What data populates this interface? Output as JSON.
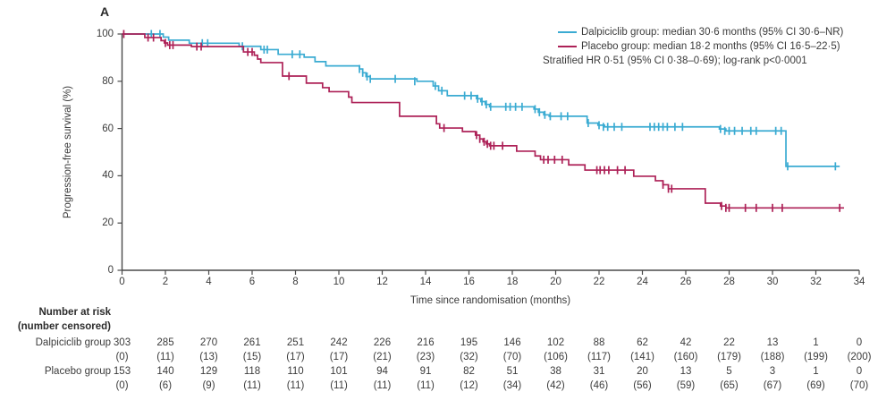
{
  "panel_label": "A",
  "legend": {
    "entries": [
      {
        "name": "Dalpiciclib group",
        "label": "Dalpiciclib group: median 30·6 months (95% CI 30·6–NR)",
        "color": "#3aabd2"
      },
      {
        "name": "Placebo group",
        "label": "Placebo group: median 18·2 months (95% CI 16·5–22·5)",
        "color": "#ad2157"
      }
    ],
    "note": "Stratified HR 0·51 (95% CI 0·38–0·69); log-rank p<0·0001"
  },
  "chart_data": {
    "type": "line",
    "subtype": "kaplan-meier-step",
    "title": "",
    "xlabel": "Time since randomisation (months)",
    "ylabel": "Progression-free survival (%)",
    "xlim": [
      0,
      34
    ],
    "ylim": [
      0,
      100
    ],
    "xticks": [
      0,
      2,
      4,
      6,
      8,
      10,
      12,
      14,
      16,
      18,
      20,
      22,
      24,
      26,
      28,
      30,
      32,
      34
    ],
    "yticks": [
      0,
      20,
      40,
      60,
      80,
      100
    ],
    "grid": false,
    "legend_position": "top-right",
    "series": [
      {
        "name": "Dalpiciclib group",
        "color": "#3aabd2",
        "median_months": "30·6",
        "ci": "30·6–NR",
        "end_t": 33.1,
        "steps": [
          [
            0,
            100
          ],
          [
            1.9,
            98.7
          ],
          [
            2.15,
            97.4
          ],
          [
            3.1,
            96.1
          ],
          [
            5.4,
            94.8
          ],
          [
            6.4,
            93.4
          ],
          [
            7.2,
            91.4
          ],
          [
            8.4,
            90.2
          ],
          [
            8.9,
            88.3
          ],
          [
            9.4,
            86.5
          ],
          [
            10.95,
            85.2
          ],
          [
            11.1,
            83.6
          ],
          [
            11.25,
            82
          ],
          [
            11.45,
            81
          ],
          [
            13.6,
            80
          ],
          [
            14.35,
            78
          ],
          [
            14.6,
            76
          ],
          [
            15.0,
            73.9
          ],
          [
            16.35,
            72.6
          ],
          [
            16.55,
            71.4
          ],
          [
            16.75,
            70.2
          ],
          [
            16.95,
            69.2
          ],
          [
            19.0,
            68.2
          ],
          [
            19.2,
            66.9
          ],
          [
            19.45,
            65.8
          ],
          [
            19.7,
            65.2
          ],
          [
            21.45,
            62.3
          ],
          [
            21.95,
            61.4
          ],
          [
            22.25,
            60.7
          ],
          [
            27.55,
            59.8
          ],
          [
            27.85,
            59.0
          ],
          [
            30.62,
            44.0
          ]
        ],
        "censor_marks": [
          [
            1.35,
            100
          ],
          [
            1.75,
            100
          ],
          [
            3.7,
            96.1
          ],
          [
            3.95,
            96.1
          ],
          [
            5.55,
            94.8
          ],
          [
            6.55,
            93.4
          ],
          [
            6.7,
            93.4
          ],
          [
            7.85,
            91.4
          ],
          [
            8.2,
            91.4
          ],
          [
            10.95,
            85.2
          ],
          [
            11.1,
            83.6
          ],
          [
            11.3,
            82
          ],
          [
            11.45,
            81
          ],
          [
            12.6,
            81
          ],
          [
            13.5,
            80
          ],
          [
            14.45,
            78
          ],
          [
            14.75,
            76
          ],
          [
            15.8,
            73.9
          ],
          [
            16.1,
            73.9
          ],
          [
            16.4,
            72.6
          ],
          [
            16.6,
            71.4
          ],
          [
            16.8,
            70.2
          ],
          [
            17.0,
            69.2
          ],
          [
            17.7,
            69.2
          ],
          [
            17.9,
            69.2
          ],
          [
            18.15,
            69.2
          ],
          [
            18.45,
            69.2
          ],
          [
            19.05,
            68.2
          ],
          [
            19.25,
            66.9
          ],
          [
            19.5,
            65.8
          ],
          [
            19.75,
            65.2
          ],
          [
            20.25,
            65.2
          ],
          [
            20.55,
            65.2
          ],
          [
            21.5,
            62.3
          ],
          [
            22.0,
            61.4
          ],
          [
            22.2,
            60.7
          ],
          [
            22.4,
            60.7
          ],
          [
            22.7,
            60.7
          ],
          [
            23.05,
            60.7
          ],
          [
            24.35,
            60.7
          ],
          [
            24.55,
            60.7
          ],
          [
            24.75,
            60.7
          ],
          [
            24.95,
            60.7
          ],
          [
            25.15,
            60.7
          ],
          [
            25.5,
            60.7
          ],
          [
            25.85,
            60.7
          ],
          [
            27.6,
            59.8
          ],
          [
            27.8,
            59
          ],
          [
            28.0,
            59
          ],
          [
            28.25,
            59
          ],
          [
            28.6,
            59
          ],
          [
            29.0,
            59
          ],
          [
            29.25,
            59
          ],
          [
            30.15,
            59
          ],
          [
            30.4,
            59
          ],
          [
            30.7,
            44
          ],
          [
            32.9,
            44
          ]
        ]
      },
      {
        "name": "Placebo group",
        "color": "#ad2157",
        "median_months": "18·2",
        "ci": "16·5–22·5",
        "end_t": 33.3,
        "steps": [
          [
            0,
            100
          ],
          [
            1.05,
            98.5
          ],
          [
            1.8,
            97.2
          ],
          [
            1.95,
            96.2
          ],
          [
            2.1,
            95.3
          ],
          [
            3.2,
            94.7
          ],
          [
            5.6,
            92.4
          ],
          [
            6.1,
            91
          ],
          [
            6.25,
            89.4
          ],
          [
            6.4,
            87.9
          ],
          [
            7.4,
            82.2
          ],
          [
            8.5,
            79.2
          ],
          [
            9.25,
            77.3
          ],
          [
            9.55,
            75.6
          ],
          [
            10.45,
            73.3
          ],
          [
            10.6,
            71
          ],
          [
            12.8,
            65.2
          ],
          [
            14.5,
            62
          ],
          [
            14.65,
            60.2
          ],
          [
            15.7,
            58.7
          ],
          [
            16.3,
            57.2
          ],
          [
            16.5,
            55.6
          ],
          [
            16.65,
            54.4
          ],
          [
            16.8,
            53.5
          ],
          [
            16.95,
            52.7
          ],
          [
            18.2,
            50.4
          ],
          [
            19.05,
            48.4
          ],
          [
            19.3,
            46.8
          ],
          [
            20.6,
            44.6
          ],
          [
            21.35,
            42.4
          ],
          [
            23.6,
            39.8
          ],
          [
            24.6,
            37.9
          ],
          [
            24.95,
            36.2
          ],
          [
            25.2,
            34.5
          ],
          [
            26.9,
            28.4
          ],
          [
            27.6,
            27.2
          ],
          [
            27.85,
            26.4
          ]
        ],
        "censor_marks": [
          [
            0.08,
            100
          ],
          [
            1.2,
            98.5
          ],
          [
            1.45,
            98.5
          ],
          [
            2.0,
            96.2
          ],
          [
            2.2,
            95.3
          ],
          [
            2.35,
            95.3
          ],
          [
            3.45,
            94.7
          ],
          [
            3.65,
            94.7
          ],
          [
            5.8,
            92.4
          ],
          [
            6.0,
            92.4
          ],
          [
            7.7,
            82.2
          ],
          [
            14.85,
            60.2
          ],
          [
            16.35,
            57.2
          ],
          [
            16.5,
            55.6
          ],
          [
            16.7,
            54.4
          ],
          [
            16.85,
            53.5
          ],
          [
            17.0,
            52.7
          ],
          [
            17.15,
            52.7
          ],
          [
            17.55,
            52.7
          ],
          [
            19.45,
            46.8
          ],
          [
            19.65,
            46.8
          ],
          [
            19.95,
            46.8
          ],
          [
            20.3,
            46.8
          ],
          [
            21.9,
            42.4
          ],
          [
            22.05,
            42.4
          ],
          [
            22.25,
            42.4
          ],
          [
            22.45,
            42.4
          ],
          [
            22.85,
            42.4
          ],
          [
            23.2,
            42.4
          ],
          [
            24.95,
            36.2
          ],
          [
            25.2,
            34.5
          ],
          [
            25.35,
            34.5
          ],
          [
            27.65,
            27.2
          ],
          [
            27.85,
            26.4
          ],
          [
            28.0,
            26.4
          ],
          [
            28.75,
            26.4
          ],
          [
            29.25,
            26.4
          ],
          [
            30.0,
            26.4
          ],
          [
            30.45,
            26.4
          ],
          [
            33.1,
            26.4
          ]
        ]
      }
    ]
  },
  "risk_table": {
    "header_line1": "Number at risk",
    "header_line2": "(number censored)",
    "time_points": [
      0,
      2,
      4,
      6,
      8,
      10,
      12,
      14,
      16,
      18,
      20,
      22,
      24,
      26,
      28,
      30,
      32,
      34
    ],
    "rows": [
      {
        "label": "Dalpiciclib group",
        "at_risk": [
          303,
          285,
          270,
          261,
          251,
          242,
          226,
          216,
          195,
          146,
          102,
          88,
          62,
          42,
          22,
          13,
          1,
          0
        ],
        "censored": [
          "(0)",
          "(11)",
          "(13)",
          "(15)",
          "(17)",
          "(17)",
          "(21)",
          "(23)",
          "(32)",
          "(70)",
          "(106)",
          "(117)",
          "(141)",
          "(160)",
          "(179)",
          "(188)",
          "(199)",
          "(200)"
        ]
      },
      {
        "label": "Placebo group",
        "at_risk": [
          153,
          140,
          129,
          118,
          110,
          101,
          94,
          91,
          82,
          51,
          38,
          31,
          20,
          13,
          5,
          3,
          1,
          0
        ],
        "censored": [
          "(0)",
          "(6)",
          "(9)",
          "(11)",
          "(11)",
          "(11)",
          "(11)",
          "(11)",
          "(12)",
          "(34)",
          "(42)",
          "(46)",
          "(56)",
          "(59)",
          "(65)",
          "(67)",
          "(69)",
          "(70)"
        ]
      }
    ]
  },
  "colors": {
    "dalpiciclib": "#3aabd2",
    "placebo": "#ad2157",
    "axis": "#4a4a4a",
    "text": "#3b3b3b",
    "background": "#ffffff"
  }
}
